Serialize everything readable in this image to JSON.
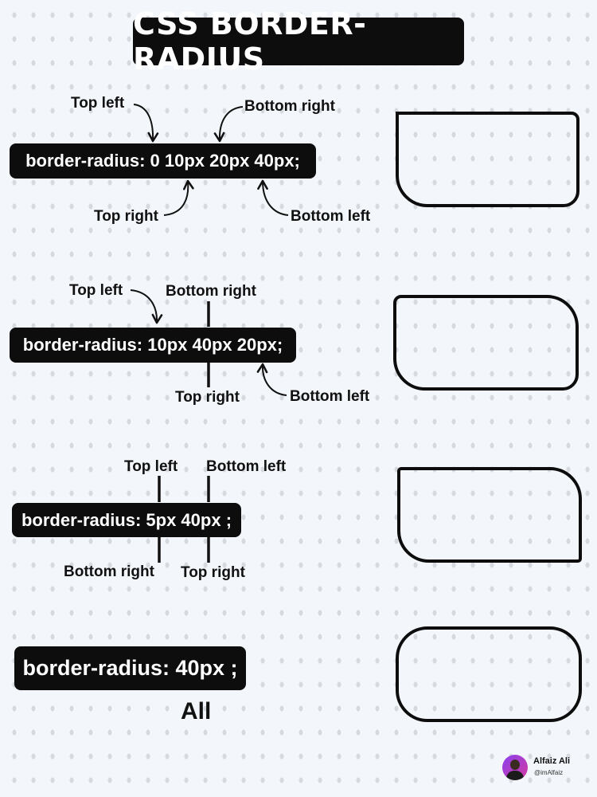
{
  "title": "CSS BORDER-RADIUS",
  "examples": [
    {
      "code": "border-radius: 0 10px 20px 40px;",
      "labels": [
        "Top left",
        "Bottom right",
        "Top right",
        "Bottom left"
      ]
    },
    {
      "code": "border-radius: 10px 40px 20px;",
      "labels": [
        "Top left",
        "Bottom right",
        "Top right",
        "Bottom left"
      ]
    },
    {
      "code": "border-radius: 5px 40px ;",
      "labels": [
        "Top left",
        "Bottom left",
        "Bottom right",
        "Top right"
      ]
    },
    {
      "code": "border-radius: 40px ;",
      "labels": [
        "All"
      ]
    }
  ],
  "author": {
    "name": "Alfaiz Ali",
    "handle": "@imAlfaiz"
  }
}
